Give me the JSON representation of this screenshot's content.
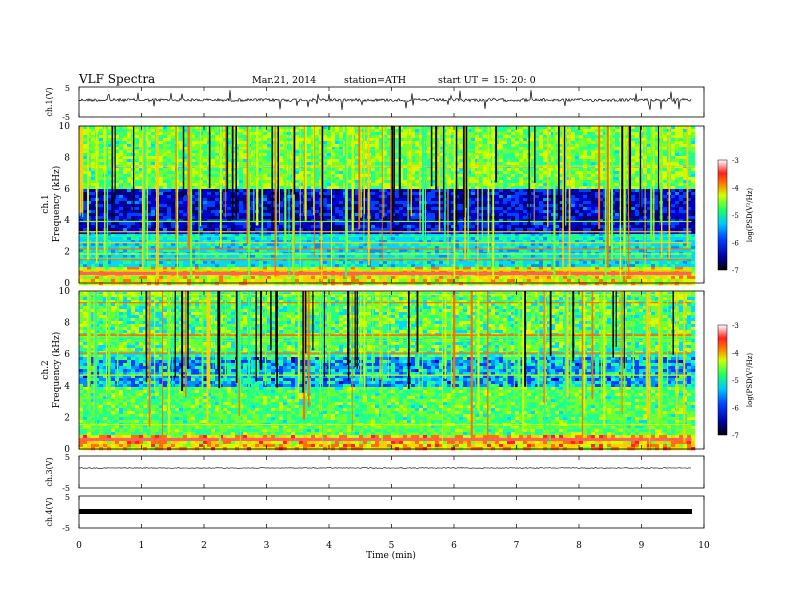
{
  "header": {
    "title": "VLF  Spectra",
    "date": "Mar.21, 2014",
    "station": "station=ATH",
    "start_label": "start  UT  =",
    "start_time": "15: 20: 0"
  },
  "chart_data": [
    {
      "type": "line",
      "panel": "ch1-waveform",
      "ylabel": "ch.1(V)",
      "ylim": [
        -5,
        5
      ],
      "yticks": [
        "5",
        "-5"
      ],
      "xlim": [
        0,
        10
      ],
      "description_level": -0.2,
      "series": [
        {
          "x": [
            0,
            9.8
          ],
          "y": [
            -0.2,
            -0.2
          ]
        }
      ]
    },
    {
      "type": "heatmap",
      "panel": "ch1-spectrogram",
      "ylabel_channel": "ch.1",
      "ylabel": "Frequency  (kHz)",
      "ylim": [
        0,
        10
      ],
      "yticks": [
        "0",
        "2",
        "4",
        "6",
        "8",
        "10"
      ],
      "xlim": [
        0,
        10
      ],
      "data_xmax": 9.8,
      "colorbar": {
        "label": "log(PSD(V²/Hz)",
        "range": [
          -7,
          -3
        ],
        "ticks": [
          "-3",
          "-4",
          "-5",
          "-6",
          "-7"
        ]
      }
    },
    {
      "type": "heatmap",
      "panel": "ch2-spectrogram",
      "ylabel_channel": "ch.2",
      "ylabel": "Frequency  (kHz)",
      "ylim": [
        0,
        10
      ],
      "yticks": [
        "0",
        "2",
        "4",
        "6",
        "8",
        "10"
      ],
      "xlim": [
        0,
        10
      ],
      "data_xmax": 9.8,
      "colorbar": {
        "label": "log(PSD(V²/Hz)",
        "range": [
          -7,
          -3
        ],
        "ticks": [
          "-3",
          "-4",
          "-5",
          "-6",
          "-7"
        ]
      }
    },
    {
      "type": "line",
      "panel": "ch3-waveform",
      "ylabel": "ch.3(V)",
      "ylim": [
        -5,
        5
      ],
      "yticks": [
        "5",
        "-5"
      ],
      "xlim": [
        0,
        10
      ],
      "series": [
        {
          "x": [
            0,
            9.8
          ],
          "y": [
            -0.5,
            -0.5
          ]
        }
      ]
    },
    {
      "type": "line",
      "panel": "ch4-waveform",
      "ylabel": "ch.4(V)",
      "ylim": [
        -5,
        5
      ],
      "yticks": [
        "5",
        "-5"
      ],
      "xlim": [
        0,
        10
      ],
      "xlabel": "Time  (min)",
      "xticks": [
        "0",
        "1",
        "2",
        "3",
        "4",
        "5",
        "6",
        "7",
        "8",
        "9",
        "10"
      ],
      "series": [
        {
          "x": [
            0,
            9.8
          ],
          "y": [
            -1,
            -1
          ]
        }
      ]
    }
  ]
}
